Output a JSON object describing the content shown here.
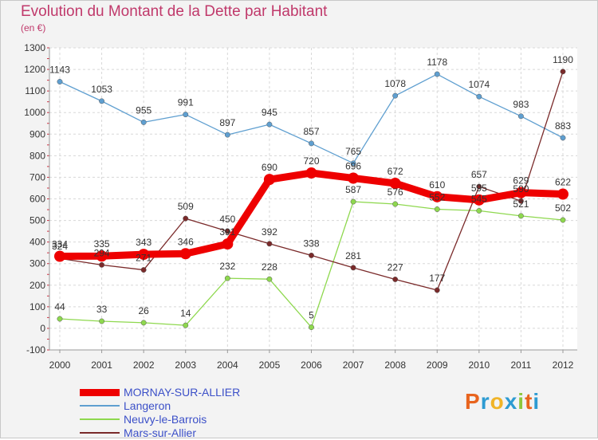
{
  "title": "Evolution du Montant de la Dette par Habitant",
  "subtitle": "(en €)",
  "logo": {
    "text": "Proxiti",
    "colors": [
      "#e8641e",
      "#2d9bd2",
      "#f0b428",
      "#2d9bd2",
      "#8cc83c",
      "#e8641e",
      "#2d9bd2"
    ]
  },
  "chart_data": {
    "type": "line",
    "title": "Evolution du Montant de la Dette par Habitant",
    "ylabel": "(en €)",
    "x": [
      "2000",
      "2001",
      "2002",
      "2003",
      "2004",
      "2005",
      "2006",
      "2007",
      "2008",
      "2009",
      "2010",
      "2011",
      "2012"
    ],
    "ylim": [
      -100,
      1300
    ],
    "yticks": [
      -100,
      0,
      100,
      200,
      300,
      400,
      500,
      600,
      700,
      800,
      900,
      1000,
      1100,
      1200,
      1300
    ],
    "grid": true,
    "legend": "bottom-left",
    "series": [
      {
        "name": "MORNAY-SUR-ALLIER",
        "color": "#ee0000",
        "values": [
          334,
          335,
          343,
          346,
          391,
          690,
          720,
          696,
          672,
          610,
          595,
          629,
          622
        ],
        "labels": [
          "334",
          "335",
          "343",
          "346",
          "391",
          "690",
          "720",
          "696",
          "672",
          "610",
          "595",
          "629",
          "622"
        ]
      },
      {
        "name": "Langeron",
        "color": "#5f9fd0",
        "values": [
          1143,
          1053,
          955,
          991,
          897,
          945,
          857,
          765,
          1078,
          1178,
          1074,
          983,
          883
        ],
        "labels": [
          "1143",
          "1053",
          "955",
          "991",
          "897",
          "945",
          "857",
          "765",
          "1078",
          "1178",
          "1074",
          "983",
          "883"
        ]
      },
      {
        "name": "Neuvy-le-Barrois",
        "color": "#8ed84e",
        "values": [
          44,
          33,
          26,
          14,
          232,
          228,
          5,
          587,
          576,
          552,
          545,
          521,
          502
        ],
        "labels": [
          "44",
          "33",
          "26",
          "14",
          "232",
          "228",
          "5",
          "587",
          "576",
          "552",
          "545",
          "521",
          "502"
        ]
      },
      {
        "name": "Mars-sur-Allier",
        "color": "#7a2a2a",
        "values": [
          324,
          294,
          271,
          509,
          450,
          392,
          338,
          281,
          227,
          177,
          657,
          590,
          1190
        ],
        "labels": [
          "324",
          "294",
          "271",
          "509",
          "450",
          "392",
          "338",
          "281",
          "227",
          "177",
          "657",
          "590",
          "1190"
        ]
      }
    ]
  }
}
